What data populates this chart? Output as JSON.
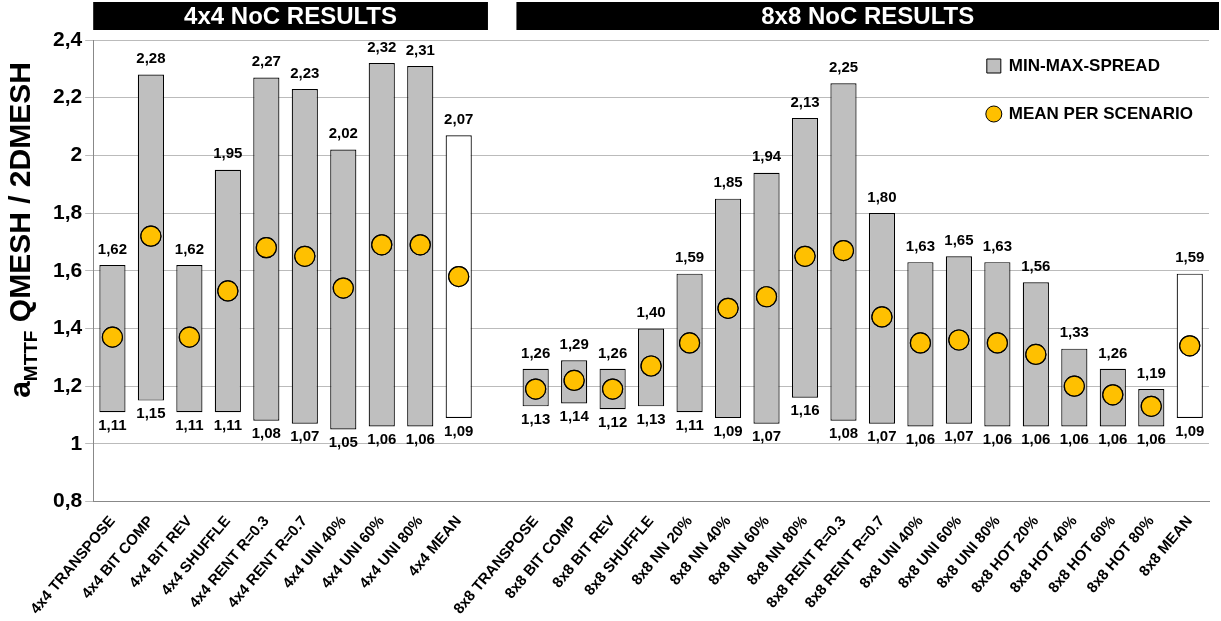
{
  "chart_data": {
    "type": "bar",
    "ylabel": "a$_{MTTF}$ QMESH / 2DMESH",
    "categories": [
      "4x4 TRANSPOSE",
      "4x4 BIT COMP",
      "4x4 BIT REV",
      "4x4 SHUFFLE",
      "4x4 RENT R=0.3",
      "4x4 RENT R=0.7",
      "4x4 UNI 40%",
      "4x4 UNI 60%",
      "4x4 UNI 80%",
      "4x4 MEAN",
      null,
      "8x8 TRANSPOSE",
      "8x8 BIT COMP",
      "8x8 BIT REV",
      "8x8 SHUFFLE",
      "8x8 NN 20%",
      "8x8 NN 40%",
      "8x8 NN 60%",
      "8x8 NN 80%",
      "8x8 RENT R=0.3",
      "8x8 RENT R=0.7",
      "8x8 UNI 40%",
      "8x8 UNI 60%",
      "8x8 UNI 80%",
      "8x8 HOT 20%",
      "8x8 HOT 40%",
      "8x8 HOT 60%",
      "8x8 HOT 80%",
      "8x8 MEAN"
    ],
    "series": [
      {
        "name": "MIN-MAX-SPREAD",
        "color": "#bfbfbf",
        "colors": [
          "#bfbfbf",
          "#bfbfbf",
          "#bfbfbf",
          "#bfbfbf",
          "#bfbfbf",
          "#bfbfbf",
          "#bfbfbf",
          "#bfbfbf",
          "#bfbfbf",
          "#ffffff",
          null,
          "#bfbfbf",
          "#bfbfbf",
          "#bfbfbf",
          "#bfbfbf",
          "#bfbfbf",
          "#bfbfbf",
          "#bfbfbf",
          "#bfbfbf",
          "#bfbfbf",
          "#bfbfbf",
          "#bfbfbf",
          "#bfbfbf",
          "#bfbfbf",
          "#bfbfbf",
          "#bfbfbf",
          "#bfbfbf",
          "#bfbfbf",
          "#ffffff"
        ],
        "base": [
          1.11,
          1.15,
          1.11,
          1.11,
          1.08,
          1.07,
          1.05,
          1.06,
          1.06,
          1.09,
          null,
          1.13,
          1.14,
          1.12,
          1.13,
          1.11,
          1.09,
          1.07,
          1.16,
          1.08,
          1.07,
          1.06,
          1.07,
          1.06,
          1.06,
          1.06,
          1.06,
          1.06,
          1.09
        ],
        "values": [
          0.51,
          1.13,
          0.51,
          0.84,
          1.19,
          1.16,
          0.97,
          1.26,
          1.25,
          0.98,
          null,
          0.13,
          0.15,
          0.14,
          0.27,
          0.48,
          0.76,
          0.87,
          0.97,
          1.17,
          0.73,
          0.57,
          0.58,
          0.57,
          0.5,
          0.27,
          0.2,
          0.13,
          0.5
        ]
      },
      {
        "name": "MEAN PER SCENARIO",
        "type": "scatter",
        "color": "#ffc000",
        "values": [
          1.37,
          1.72,
          1.37,
          1.53,
          1.68,
          1.65,
          1.54,
          1.69,
          1.69,
          1.58,
          null,
          1.19,
          1.22,
          1.19,
          1.27,
          1.35,
          1.47,
          1.51,
          1.65,
          1.67,
          1.44,
          1.35,
          1.36,
          1.35,
          1.31,
          1.2,
          1.17,
          1.13,
          1.34
        ]
      }
    ],
    "marker": "circle",
    "ylim": [
      0.8,
      2.4
    ],
    "yticks": [
      {
        "value": 0.8,
        "label": "0,8"
      },
      1,
      {
        "value": 1.2,
        "label": "1,2"
      },
      {
        "value": 1.4,
        "label": "1,4"
      },
      {
        "value": 1.6,
        "label": "1,6"
      },
      {
        "value": 1.8,
        "label": "1,8"
      },
      2,
      {
        "value": 2.2,
        "label": "2,2"
      },
      {
        "value": 2.4,
        "label": "2,4"
      }
    ],
    "grid": "y",
    "legend": "top right",
    "annotations": [
      "4x4 NoC RESULTS",
      "8x8 NoC RESULTS",
      {
        "text": "1,62",
        "x": "4x4 TRANSPOSE",
        "y": 1.62
      },
      {
        "text": "1,11",
        "x": "4x4 TRANSPOSE",
        "y": 1.11
      },
      {
        "text": "2,28",
        "x": "4x4 BIT COMP",
        "y": 2.28
      },
      {
        "text": "1,15",
        "x": "4x4 BIT COMP",
        "y": 1.15
      },
      {
        "text": "1,62",
        "x": "4x4 BIT REV",
        "y": 1.62
      },
      {
        "text": "1,11",
        "x": "4x4 BIT REV",
        "y": 1.11
      },
      {
        "text": "1,95",
        "x": "4x4 SHUFFLE",
        "y": 1.95
      },
      {
        "text": "1,11",
        "x": "4x4 SHUFFLE",
        "y": 1.11
      },
      {
        "text": "2,27",
        "x": "4x4 RENT R=0.3",
        "y": 2.27
      },
      {
        "text": "1,08",
        "x": "4x4 RENT R=0.3",
        "y": 1.08
      },
      {
        "text": "2,23",
        "x": "4x4 RENT R=0.7",
        "y": 2.23
      },
      {
        "text": "1,07",
        "x": "4x4 RENT R=0.7",
        "y": 1.07
      },
      {
        "text": "2,02",
        "x": "4x4 UNI 40%",
        "y": 2.02
      },
      {
        "text": "1,05",
        "x": "4x4 UNI 40%",
        "y": 1.05
      },
      {
        "text": "2,32",
        "x": "4x4 UNI 60%",
        "y": 2.32
      },
      {
        "text": "1,06",
        "x": "4x4 UNI 60%",
        "y": 1.06
      },
      {
        "text": "2,31",
        "x": "4x4 UNI 80%",
        "y": 2.31
      },
      {
        "text": "1,06",
        "x": "4x4 UNI 80%",
        "y": 1.06
      },
      {
        "text": "2,07",
        "x": "4x4 MEAN",
        "y": 2.07
      },
      {
        "text": "1,09",
        "x": "4x4 MEAN",
        "y": 1.09
      },
      {
        "text": "1,26",
        "x": "8x8 TRANSPOSE",
        "y": 1.26
      },
      {
        "text": "1,13",
        "x": "8x8 TRANSPOSE",
        "y": 1.13
      },
      {
        "text": "1,29",
        "x": "8x8 BIT COMP",
        "y": 1.29
      },
      {
        "text": "1,14",
        "x": "8x8 BIT COMP",
        "y": 1.14
      },
      {
        "text": "1,26",
        "x": "8x8 BIT REV",
        "y": 1.26
      },
      {
        "text": "1,12",
        "x": "8x8 BIT REV",
        "y": 1.12
      },
      {
        "text": "1,40",
        "x": "8x8 SHUFFLE",
        "y": 1.4
      },
      {
        "text": "1,13",
        "x": "8x8 SHUFFLE",
        "y": 1.13
      },
      {
        "text": "1,59",
        "x": "8x8 NN 20%",
        "y": 1.59
      },
      {
        "text": "1,11",
        "x": "8x8 NN 20%",
        "y": 1.11
      },
      {
        "text": "1,85",
        "x": "8x8 NN 40%",
        "y": 1.85
      },
      {
        "text": "1,09",
        "x": "8x8 NN 40%",
        "y": 1.09
      },
      {
        "text": "1,94",
        "x": "8x8 NN 60%",
        "y": 1.94
      },
      {
        "text": "1,07",
        "x": "8x8 NN 60%",
        "y": 1.07
      },
      {
        "text": "2,13",
        "x": "8x8 NN 80%",
        "y": 2.13
      },
      {
        "text": "1,16",
        "x": "8x8 NN 80%",
        "y": 1.16
      },
      {
        "text": "2,25",
        "x": "8x8 RENT R=0.3",
        "y": 2.25
      },
      {
        "text": "1,08",
        "x": "8x8 RENT R=0.3",
        "y": 1.08
      },
      {
        "text": "1,80",
        "x": "8x8 RENT R=0.7",
        "y": 1.8
      },
      {
        "text": "1,07",
        "x": "8x8 RENT R=0.7",
        "y": 1.07
      },
      {
        "text": "1,63",
        "x": "8x8 UNI 40%",
        "y": 1.63
      },
      {
        "text": "1,06",
        "x": "8x8 UNI 40%",
        "y": 1.06
      },
      {
        "text": "1,65",
        "x": "8x8 UNI 60%",
        "y": 1.65
      },
      {
        "text": "1,07",
        "x": "8x8 UNI 60%",
        "y": 1.07
      },
      {
        "text": "1,63",
        "x": "8x8 UNI 80%",
        "y": 1.63
      },
      {
        "text": "1,06",
        "x": "8x8 UNI 80%",
        "y": 1.06
      },
      {
        "text": "1,56",
        "x": "8x8 HOT 20%",
        "y": 1.56
      },
      {
        "text": "1,06",
        "x": "8x8 HOT 20%",
        "y": 1.06
      },
      {
        "text": "1,33",
        "x": "8x8 HOT 40%",
        "y": 1.33
      },
      {
        "text": "1,06",
        "x": "8x8 HOT 40%",
        "y": 1.06
      },
      {
        "text": "1,26",
        "x": "8x8 HOT 60%",
        "y": 1.26
      },
      {
        "text": "1,06",
        "x": "8x8 HOT 60%",
        "y": 1.06
      },
      {
        "text": "1,19",
        "x": "8x8 HOT 80%",
        "y": 1.19
      },
      {
        "text": "1,06",
        "x": "8x8 HOT 80%",
        "y": 1.06
      },
      {
        "text": "1,59",
        "x": "8x8 MEAN",
        "y": 1.59
      },
      {
        "text": "1,09",
        "x": "8x8 MEAN",
        "y": 1.09
      }
    ]
  }
}
